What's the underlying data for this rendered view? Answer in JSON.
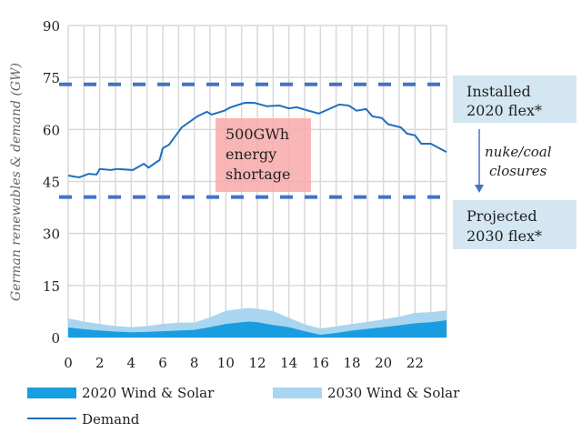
{
  "chart_data": {
    "type": "area",
    "title": "",
    "xlabel": "",
    "ylabel": "German renewables & demand (GW)",
    "xlim": [
      0,
      24
    ],
    "ylim": [
      0,
      90
    ],
    "xticks": [
      "0",
      "2",
      "4",
      "6",
      "8",
      "10",
      "12",
      "14",
      "16",
      "18",
      "20",
      "22"
    ],
    "yticks": [
      "0",
      "15",
      "30",
      "45",
      "60",
      "75",
      "90"
    ],
    "grid": "on",
    "legend_position": "bottom",
    "series": [
      {
        "name": "2020 Wind & Solar",
        "type": "area",
        "color": "#1a9de0",
        "x": [
          0,
          1,
          2,
          3,
          4,
          5,
          6,
          7,
          8,
          9,
          10,
          11,
          11.5,
          12,
          13,
          14,
          15,
          16,
          17,
          18,
          19,
          20,
          21,
          22,
          23,
          24
        ],
        "y": [
          2.9,
          2.4,
          2.0,
          1.7,
          1.5,
          1.6,
          1.8,
          2.0,
          2.2,
          3.0,
          3.9,
          4.4,
          4.6,
          4.4,
          3.6,
          3.0,
          1.8,
          0.8,
          1.3,
          2.0,
          2.5,
          3.0,
          3.5,
          4.1,
          4.4,
          5.0
        ]
      },
      {
        "name": "2030 Wind & Solar",
        "type": "area",
        "color": "#a9d5f0",
        "x": [
          0,
          1,
          2,
          3,
          4,
          5,
          6,
          7,
          8,
          9,
          10,
          11,
          11.5,
          12,
          13,
          14,
          15,
          16,
          17,
          18,
          19,
          20,
          21,
          22,
          23,
          24
        ],
        "y": [
          5.5,
          4.6,
          3.9,
          3.3,
          3.0,
          3.3,
          3.9,
          4.3,
          4.3,
          5.8,
          7.7,
          8.3,
          8.5,
          8.3,
          7.6,
          5.7,
          3.8,
          2.6,
          3.2,
          3.9,
          4.5,
          5.2,
          6.0,
          7.1,
          7.3,
          7.8
        ]
      },
      {
        "name": "Demand",
        "type": "line",
        "color": "#1f6fbf",
        "x": [
          0,
          0.7,
          1.3,
          1.8,
          2,
          2.7,
          3.1,
          4.1,
          4.8,
          5.1,
          5.8,
          6,
          6.4,
          7.2,
          8.2,
          8.8,
          9.1,
          9.9,
          10.3,
          11.2,
          11.8,
          12.6,
          13.4,
          14,
          14.5,
          15.1,
          15.9,
          16.4,
          17.2,
          17.8,
          18.3,
          18.9,
          19.3,
          19.9,
          20.3,
          21.1,
          21.5,
          22,
          22.4,
          23,
          24
        ],
        "y": [
          46.7,
          46.2,
          47.2,
          47,
          48.6,
          48.3,
          48.6,
          48.3,
          50.1,
          49,
          51.2,
          54.6,
          55.6,
          60.6,
          63.8,
          65.1,
          64.3,
          65.4,
          66.4,
          67.7,
          67.7,
          66.7,
          66.9,
          66.1,
          66.4,
          65.6,
          64.6,
          65.6,
          67.2,
          66.9,
          65.4,
          65.9,
          63.8,
          63.3,
          61.5,
          60.6,
          58.8,
          58.3,
          55.9,
          55.9,
          53.5
        ]
      }
    ],
    "reference_lines": [
      {
        "y": 73,
        "style": "dashed",
        "color": "#4472c4",
        "label": "Installed 2020 flex*"
      },
      {
        "y": 40.5,
        "style": "dashed",
        "color": "#4472c4",
        "label": "Projected 2030 flex*"
      }
    ],
    "annotations": {
      "shortage": [
        "500GWh",
        "energy",
        "shortage"
      ],
      "shortage_color": "#f7a9a9",
      "installed": [
        "Installed",
        "2020 flex*"
      ],
      "projected": [
        "Projected",
        "2030 flex*"
      ],
      "arrow_text": [
        "nuke/coal",
        "closures"
      ],
      "box_color": "#d4e6f1"
    }
  }
}
